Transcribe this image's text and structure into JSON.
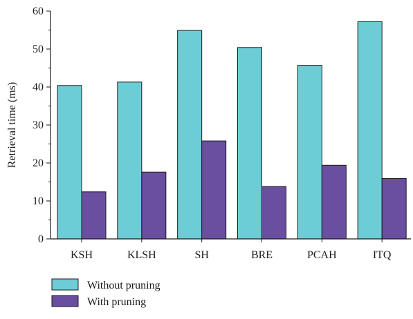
{
  "chart_data": {
    "type": "bar",
    "title": "",
    "xlabel": "",
    "ylabel": "Retrieval time (ms)",
    "ylim": [
      0,
      60
    ],
    "yticks": [
      0,
      10,
      20,
      30,
      40,
      50,
      60
    ],
    "categories": [
      "KSH",
      "KLSH",
      "SH",
      "BRE",
      "PCAH",
      "ITQ"
    ],
    "series": [
      {
        "name": "Without pruning",
        "color": "#6dcdd6",
        "values": [
          40.4,
          41.3,
          54.9,
          50.4,
          45.7,
          57.2
        ]
      },
      {
        "name": "With pruning",
        "color": "#6a4fa0",
        "values": [
          12.4,
          17.6,
          25.8,
          13.8,
          19.4,
          15.9
        ]
      }
    ],
    "grid": false,
    "legend_position": "bottom-left"
  }
}
